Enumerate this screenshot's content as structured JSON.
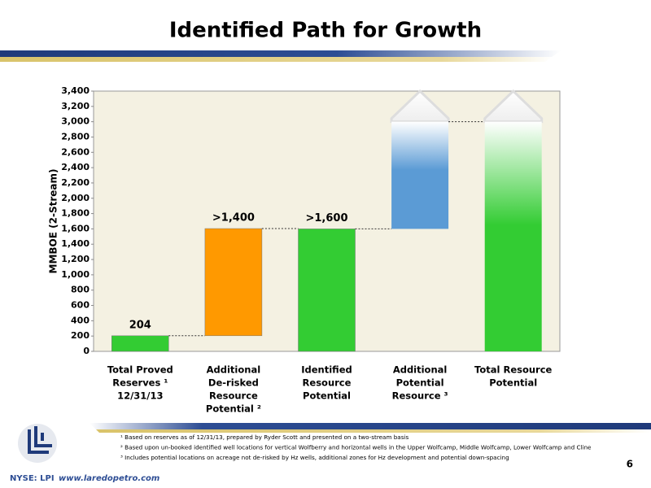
{
  "chart_data": {
    "type": "waterfall",
    "title": "Identified Path for Growth",
    "y_label": "MMBOE (2-Stream)",
    "categories": [
      [
        "Total Proved",
        "Reserves ¹",
        "12/31/13"
      ],
      [
        "Additional",
        "De-risked",
        "Resource",
        "Potential ²"
      ],
      [
        "Identified",
        "Resource",
        "Potential"
      ],
      [
        "Additional",
        "Potential",
        "Resource ³"
      ],
      [
        "Total Resource",
        "Potential"
      ]
    ],
    "values": [
      204,
      1400,
      1600,
      1400,
      3000
    ],
    "value_labels": [
      "204",
      ">1,400",
      ">1,600",
      null,
      null
    ],
    "kinds": [
      "increase",
      "increase",
      "total",
      "increase",
      "total"
    ],
    "open_ended": [
      false,
      false,
      false,
      true,
      true
    ],
    "colors": [
      "#33cc33",
      "#ff9900",
      "#33cc33",
      "#5b9bd5",
      "#33cc33"
    ],
    "ylim": [
      0,
      3400
    ],
    "yticks": [
      0,
      200,
      400,
      600,
      800,
      {
        "value": 1000,
        "label": "1,000"
      },
      {
        "value": 1200,
        "label": "1,200"
      },
      {
        "value": 1400,
        "label": "1,400"
      },
      {
        "value": 1600,
        "label": "1,600"
      },
      {
        "value": 1800,
        "label": "1,800"
      },
      {
        "value": 2000,
        "label": "2,000"
      },
      {
        "value": 2200,
        "label": "2,200"
      },
      {
        "value": 2400,
        "label": "2,400"
      },
      {
        "value": 2600,
        "label": "2,600"
      },
      {
        "value": 2800,
        "label": "2,800"
      },
      {
        "value": 3000,
        "label": "3,000"
      },
      {
        "value": 3200,
        "label": "3,200"
      },
      {
        "value": 3400,
        "label": "3,400"
      }
    ],
    "footnotes": [
      "¹ Based on reserves as of 12/31/13, prepared by Ryder Scott and presented on a two-stream basis",
      "² Based upon un-booked identified well locations  for vertical Wolfberry and horizontal wells in the Upper Wolfcamp, Middle Wolfcamp, Lower Wolfcamp and Cline",
      "³ Includes potential locations on acreage not de-risked by Hz wells, additional zones for Hz development and potential down-spacing"
    ]
  },
  "footer": {
    "ticker": "NYSE: LPI",
    "url": "www.laredopetro.com",
    "page": "6"
  }
}
